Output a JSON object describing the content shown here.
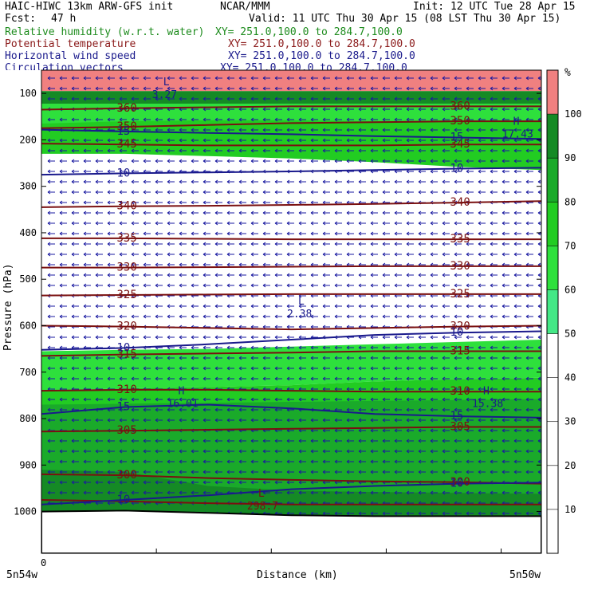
{
  "header": {
    "model": "HAIC-HIWC 13km ARW-GFS init",
    "org": "NCAR/MMM",
    "init": "Init: 12 UTC Tue 28 Apr 15",
    "fcst_label": "Fcst:",
    "fcst_value": "47 h",
    "valid": "Valid: 11 UTC Thu 30 Apr 15 (08 LST Thu 30 Apr 15)",
    "fields": [
      {
        "name": "Relative humidity (w.r.t. water)",
        "xy": "XY= 251.0,100.0 to 284.7,100.0",
        "color": "#1e8c1e"
      },
      {
        "name": "Potential temperature",
        "xy": "XY= 251.0,100.0 to 284.7,100.0",
        "color": "#8b1a1a"
      },
      {
        "name": "Horizontal wind speed",
        "xy": "XY= 251.0,100.0 to 284.7,100.0",
        "color": "#1a1a8c"
      },
      {
        "name": "Circulation vectors",
        "xy": "XY= 251.0,100.0 to 284.7,100.0",
        "color": "#1a1a8c"
      }
    ]
  },
  "colors": {
    "theta": "#7a1010",
    "wind": "#1a1a8c",
    "vector": "#1a1aa0",
    "ground": "#000000"
  },
  "chart_data": {
    "type": "heatmap",
    "ylabel": "Pressure (hPa)",
    "xlabel": "Distance (km)",
    "x_origin": "0",
    "x_left": "5n54w",
    "x_right": "5n50w",
    "y_ticks": [
      100,
      200,
      300,
      400,
      500,
      600,
      700,
      800,
      900,
      1000
    ],
    "ylim": [
      1090,
      50
    ],
    "xlim": [
      0,
      100
    ],
    "colorbar": {
      "unit": "%",
      "ticks": [
        10,
        20,
        30,
        40,
        50,
        60,
        70,
        80,
        90,
        100
      ],
      "levels": [
        {
          "from": 50,
          "to": 60,
          "color": "#44e886"
        },
        {
          "from": 60,
          "to": 70,
          "color": "#2ee03c"
        },
        {
          "from": 70,
          "to": 80,
          "color": "#22cc22"
        },
        {
          "from": 80,
          "to": 90,
          "color": "#1aaa2a"
        },
        {
          "from": 90,
          "to": 100,
          "color": "#158a25"
        },
        {
          "from": 100,
          "to": 110,
          "color": "#f08080"
        }
      ]
    },
    "rh_bands": [
      {
        "level": 100,
        "top": [
          50,
          50,
          50,
          50,
          50,
          50,
          50
        ],
        "bottom": [
          95,
          95,
          95,
          95,
          95,
          95,
          95
        ]
      },
      {
        "level": 90,
        "top": [
          95,
          95,
          95,
          95,
          95,
          95,
          95
        ],
        "bottom": [
          122,
          122,
          122,
          122,
          122,
          122,
          122
        ]
      },
      {
        "level": 60,
        "top": [
          122,
          122,
          122,
          122,
          122,
          122,
          122
        ],
        "bottom": [
          165,
          165,
          165,
          165,
          165,
          165,
          165
        ]
      },
      {
        "level": 70,
        "top": [
          165,
          160,
          158,
          158,
          160,
          158,
          158
        ],
        "bottom": [
          230,
          230,
          235,
          240,
          248,
          258,
          265
        ]
      },
      {
        "level": 60,
        "top": [
          655,
          652,
          650,
          645,
          640,
          635,
          630
        ],
        "bottom": [
          740,
          735,
          732,
          728,
          720,
          715,
          712
        ]
      },
      {
        "level": 70,
        "top": [
          740,
          735,
          732,
          728,
          720,
          715,
          712
        ],
        "bottom": [
          1010,
          1010,
          1010,
          1010,
          1010,
          1010,
          1010
        ]
      },
      {
        "level": 80,
        "top": [
          770,
          768,
          766,
          764,
          762,
          760,
          758
        ],
        "bottom": [
          1010,
          1010,
          1010,
          1010,
          1010,
          1010,
          1010
        ]
      },
      {
        "level": 90,
        "top": [
          910,
          915,
          945,
          955,
          958,
          960,
          962
        ],
        "bottom": [
          1000,
          995,
          1005,
          1008,
          1008,
          1008,
          1008
        ]
      }
    ],
    "theta_contours": [
      {
        "label": "360",
        "p": [
          135,
          132,
          130,
          128,
          128,
          128,
          128
        ]
      },
      {
        "label": "350",
        "p": [
          175,
          172,
          168,
          164,
          162,
          160,
          160
        ]
      },
      {
        "label": "345",
        "p": [
          208,
          210,
          212,
          212,
          212,
          210,
          210
        ]
      },
      {
        "label": "340",
        "p": [
          345,
          343,
          342,
          340,
          338,
          335,
          332
        ]
      },
      {
        "label": "335",
        "p": [
          412,
          412,
          413,
          414,
          414,
          414,
          414
        ]
      },
      {
        "label": "330",
        "p": [
          475,
          475,
          474,
          473,
          472,
          472,
          472
        ]
      },
      {
        "label": "325",
        "p": [
          535,
          534,
          533,
          532,
          532,
          532,
          532
        ]
      },
      {
        "label": "320",
        "p": [
          600,
          602,
          605,
          608,
          605,
          602,
          600
        ]
      },
      {
        "label": "315",
        "p": [
          665,
          662,
          660,
          658,
          655,
          655,
          655
        ]
      },
      {
        "label": "310",
        "p": [
          740,
          738,
          738,
          740,
          742,
          742,
          742
        ]
      },
      {
        "label": "305",
        "p": [
          828,
          826,
          824,
          822,
          820,
          818,
          818
        ]
      },
      {
        "label": "300",
        "p": [
          920,
          922,
          928,
          932,
          935,
          937,
          940
        ]
      },
      {
        "label": "",
        "p": [
          975,
          978,
          982,
          985,
          985,
          985,
          985
        ]
      }
    ],
    "theta_extrema": [
      {
        "type": "L",
        "value": "298.7",
        "x": 44,
        "p": 985
      }
    ],
    "wind_contours": [
      {
        "label": "15",
        "p": [
          178,
          182,
          185,
          188,
          192,
          195,
          198
        ]
      },
      {
        "label": "10",
        "p": [
          275,
          272,
          270,
          268,
          265,
          262,
          260
        ]
      },
      {
        "label": "10",
        "p": [
          652,
          648,
          640,
          630,
          620,
          615,
          612
        ]
      },
      {
        "label": "15",
        "p": [
          790,
          775,
          770,
          778,
          790,
          795,
          798
        ]
      },
      {
        "label": "10",
        "p": [
          985,
          975,
          965,
          952,
          945,
          940,
          938
        ]
      }
    ],
    "wind_extrema": [
      {
        "type": "H",
        "value": "17.43",
        "x": 95,
        "p": 185
      },
      {
        "type": "L",
        "value": "2.38",
        "x": 52,
        "p": 572
      },
      {
        "type": "H",
        "value": "16.01",
        "x": 28,
        "p": 765
      },
      {
        "type": "H",
        "value": "15.38",
        "x": 89,
        "p": 765
      },
      {
        "type": "L",
        "value": "3.27",
        "x": 25,
        "p": 100
      }
    ],
    "vector_direction": "west"
  }
}
